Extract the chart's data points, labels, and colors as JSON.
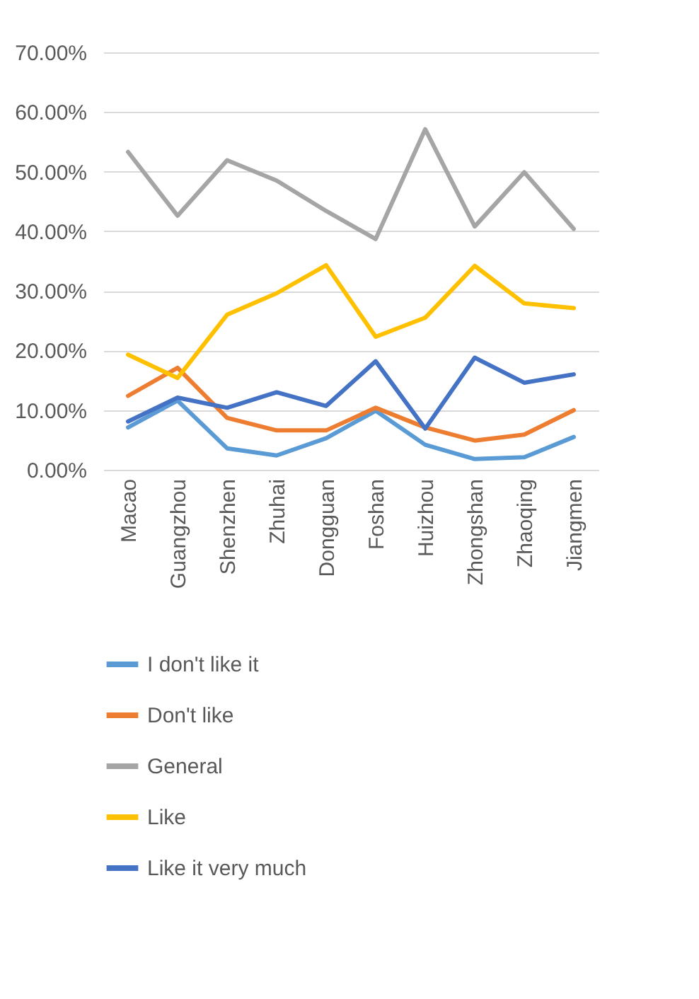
{
  "chart_data": {
    "type": "line",
    "categories": [
      "Macao",
      "Guangzhou",
      "Shenzhen",
      "Zhuhai",
      "Dongguan",
      "Foshan",
      "Huizhou",
      "Zhongshan",
      "Zhaoqing",
      "Jiangmen"
    ],
    "series": [
      {
        "name": "I don't like it",
        "color": "#5b9bd5",
        "values": [
          0.071,
          0.116,
          0.036,
          0.024,
          0.053,
          0.099,
          0.042,
          0.018,
          0.021,
          0.055
        ]
      },
      {
        "name": "Don't like",
        "color": "#ed7d31",
        "values": [
          0.124,
          0.171,
          0.087,
          0.066,
          0.066,
          0.104,
          0.071,
          0.049,
          0.059,
          0.1
        ]
      },
      {
        "name": "General",
        "color": "#a5a5a5",
        "values": [
          0.533,
          0.426,
          0.519,
          0.485,
          0.434,
          0.387,
          0.571,
          0.408,
          0.499,
          0.404
        ]
      },
      {
        "name": "Like",
        "color": "#ffc000",
        "values": [
          0.193,
          0.154,
          0.26,
          0.296,
          0.343,
          0.223,
          0.255,
          0.342,
          0.279,
          0.271
        ]
      },
      {
        "name": "Like it very much",
        "color": "#4472c4",
        "values": [
          0.081,
          0.121,
          0.104,
          0.13,
          0.107,
          0.182,
          0.069,
          0.188,
          0.146,
          0.16
        ]
      }
    ],
    "ylim": [
      0,
      0.7
    ],
    "yticks": [
      {
        "value": 0,
        "label": "0.00%"
      },
      {
        "value": 0.1,
        "label": "10.00%"
      },
      {
        "value": 0.2,
        "label": "20.00%"
      },
      {
        "value": 0.3,
        "label": "30.00%"
      },
      {
        "value": 0.4,
        "label": "40.00%"
      },
      {
        "value": 0.5,
        "label": "50.00%"
      },
      {
        "value": 0.6,
        "label": "60.00%"
      },
      {
        "value": 0.7,
        "label": "70.00%"
      }
    ],
    "grid": "y",
    "legend": "bottom",
    "marker": "none",
    "line_style": "solid"
  }
}
